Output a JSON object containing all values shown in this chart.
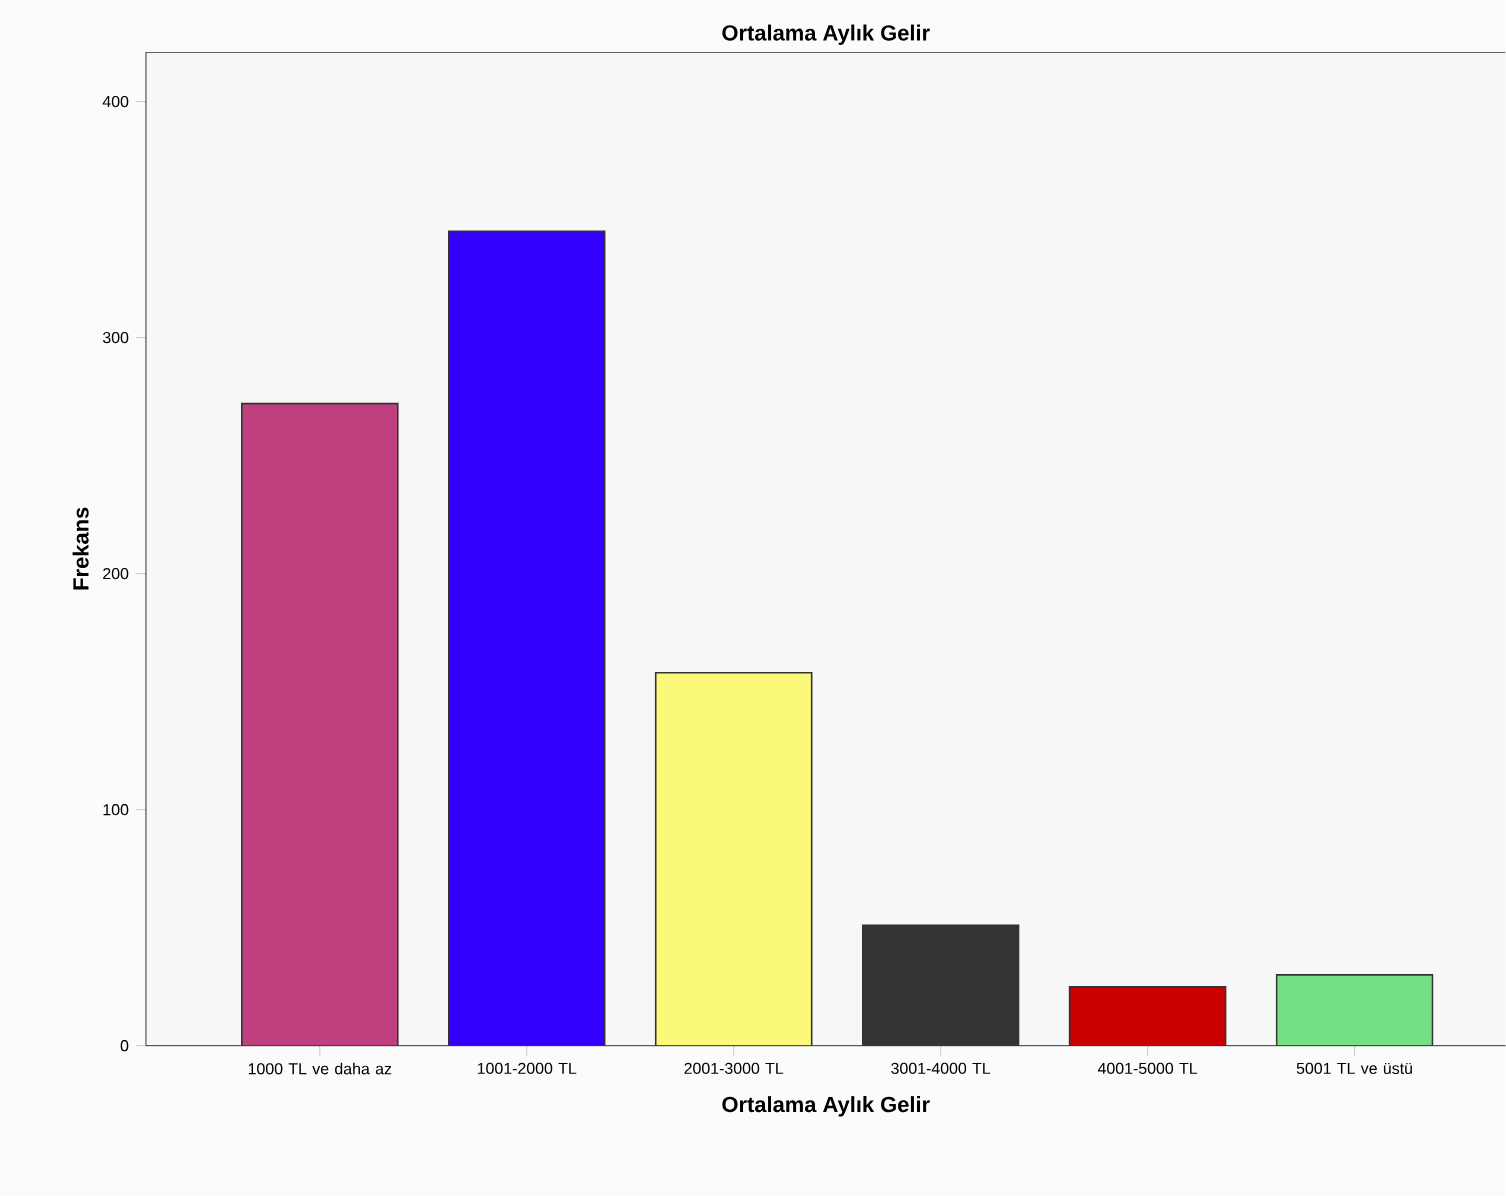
{
  "chart_data": {
    "type": "bar",
    "title": "Ortalama Aylık Gelir",
    "xlabel": "Ortalama Aylık Gelir",
    "ylabel": "Frekans",
    "categories": [
      "1000 TL ve daha az",
      "1001-2000 TL",
      "2001-3000 TL",
      "3001-4000 TL",
      "4001-5000 TL",
      "5001 TL ve üstü"
    ],
    "values": [
      272,
      345,
      158,
      51,
      25,
      30
    ],
    "colors": [
      "#c0407f",
      "#3300ff",
      "#fcf87a",
      "#333333",
      "#cc0000",
      "#74e086"
    ],
    "ylim": [
      0,
      421
    ],
    "yticks": [
      0,
      100,
      200,
      300,
      400
    ],
    "grid": false
  }
}
